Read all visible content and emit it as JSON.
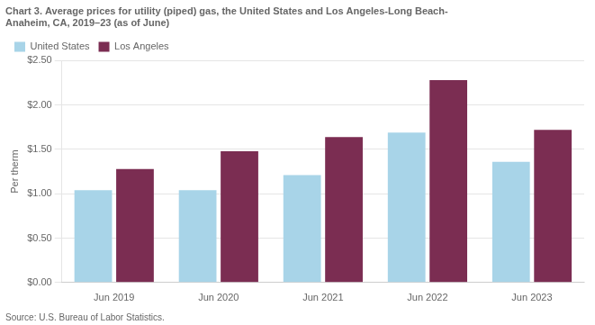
{
  "chart_data": {
    "type": "bar",
    "title": [
      "Chart 3. Average prices for utility (piped) gas, the United States and Los Angeles-Long Beach-",
      "Anaheim, CA, 2019–23 (as of June)"
    ],
    "y_label": "Per therm",
    "source": "Source: U.S. Bureau of Labor Statistics.",
    "categories": [
      "Jun 2019",
      "Jun 2020",
      "Jun 2021",
      "Jun 2022",
      "Jun 2023"
    ],
    "series": [
      {
        "name": "United States",
        "color": "#a8d4e8",
        "values": [
          1.04,
          1.04,
          1.21,
          1.69,
          1.36
        ]
      },
      {
        "name": "Los Angeles",
        "color": "#7b2d52",
        "values": [
          1.28,
          1.48,
          1.64,
          2.28,
          1.72
        ]
      }
    ],
    "ylim": [
      0,
      2.5
    ],
    "yticks": [
      {
        "value": 0,
        "label": "$0.00"
      },
      {
        "value": 0.5,
        "label": "$0.50"
      },
      {
        "value": 1,
        "label": "$1.00"
      },
      {
        "value": 1.5,
        "label": "$1.50"
      },
      {
        "value": 2,
        "label": "$2.00"
      },
      {
        "value": 2.5,
        "label": "$2.50"
      }
    ],
    "grid": true,
    "legend": "top"
  }
}
